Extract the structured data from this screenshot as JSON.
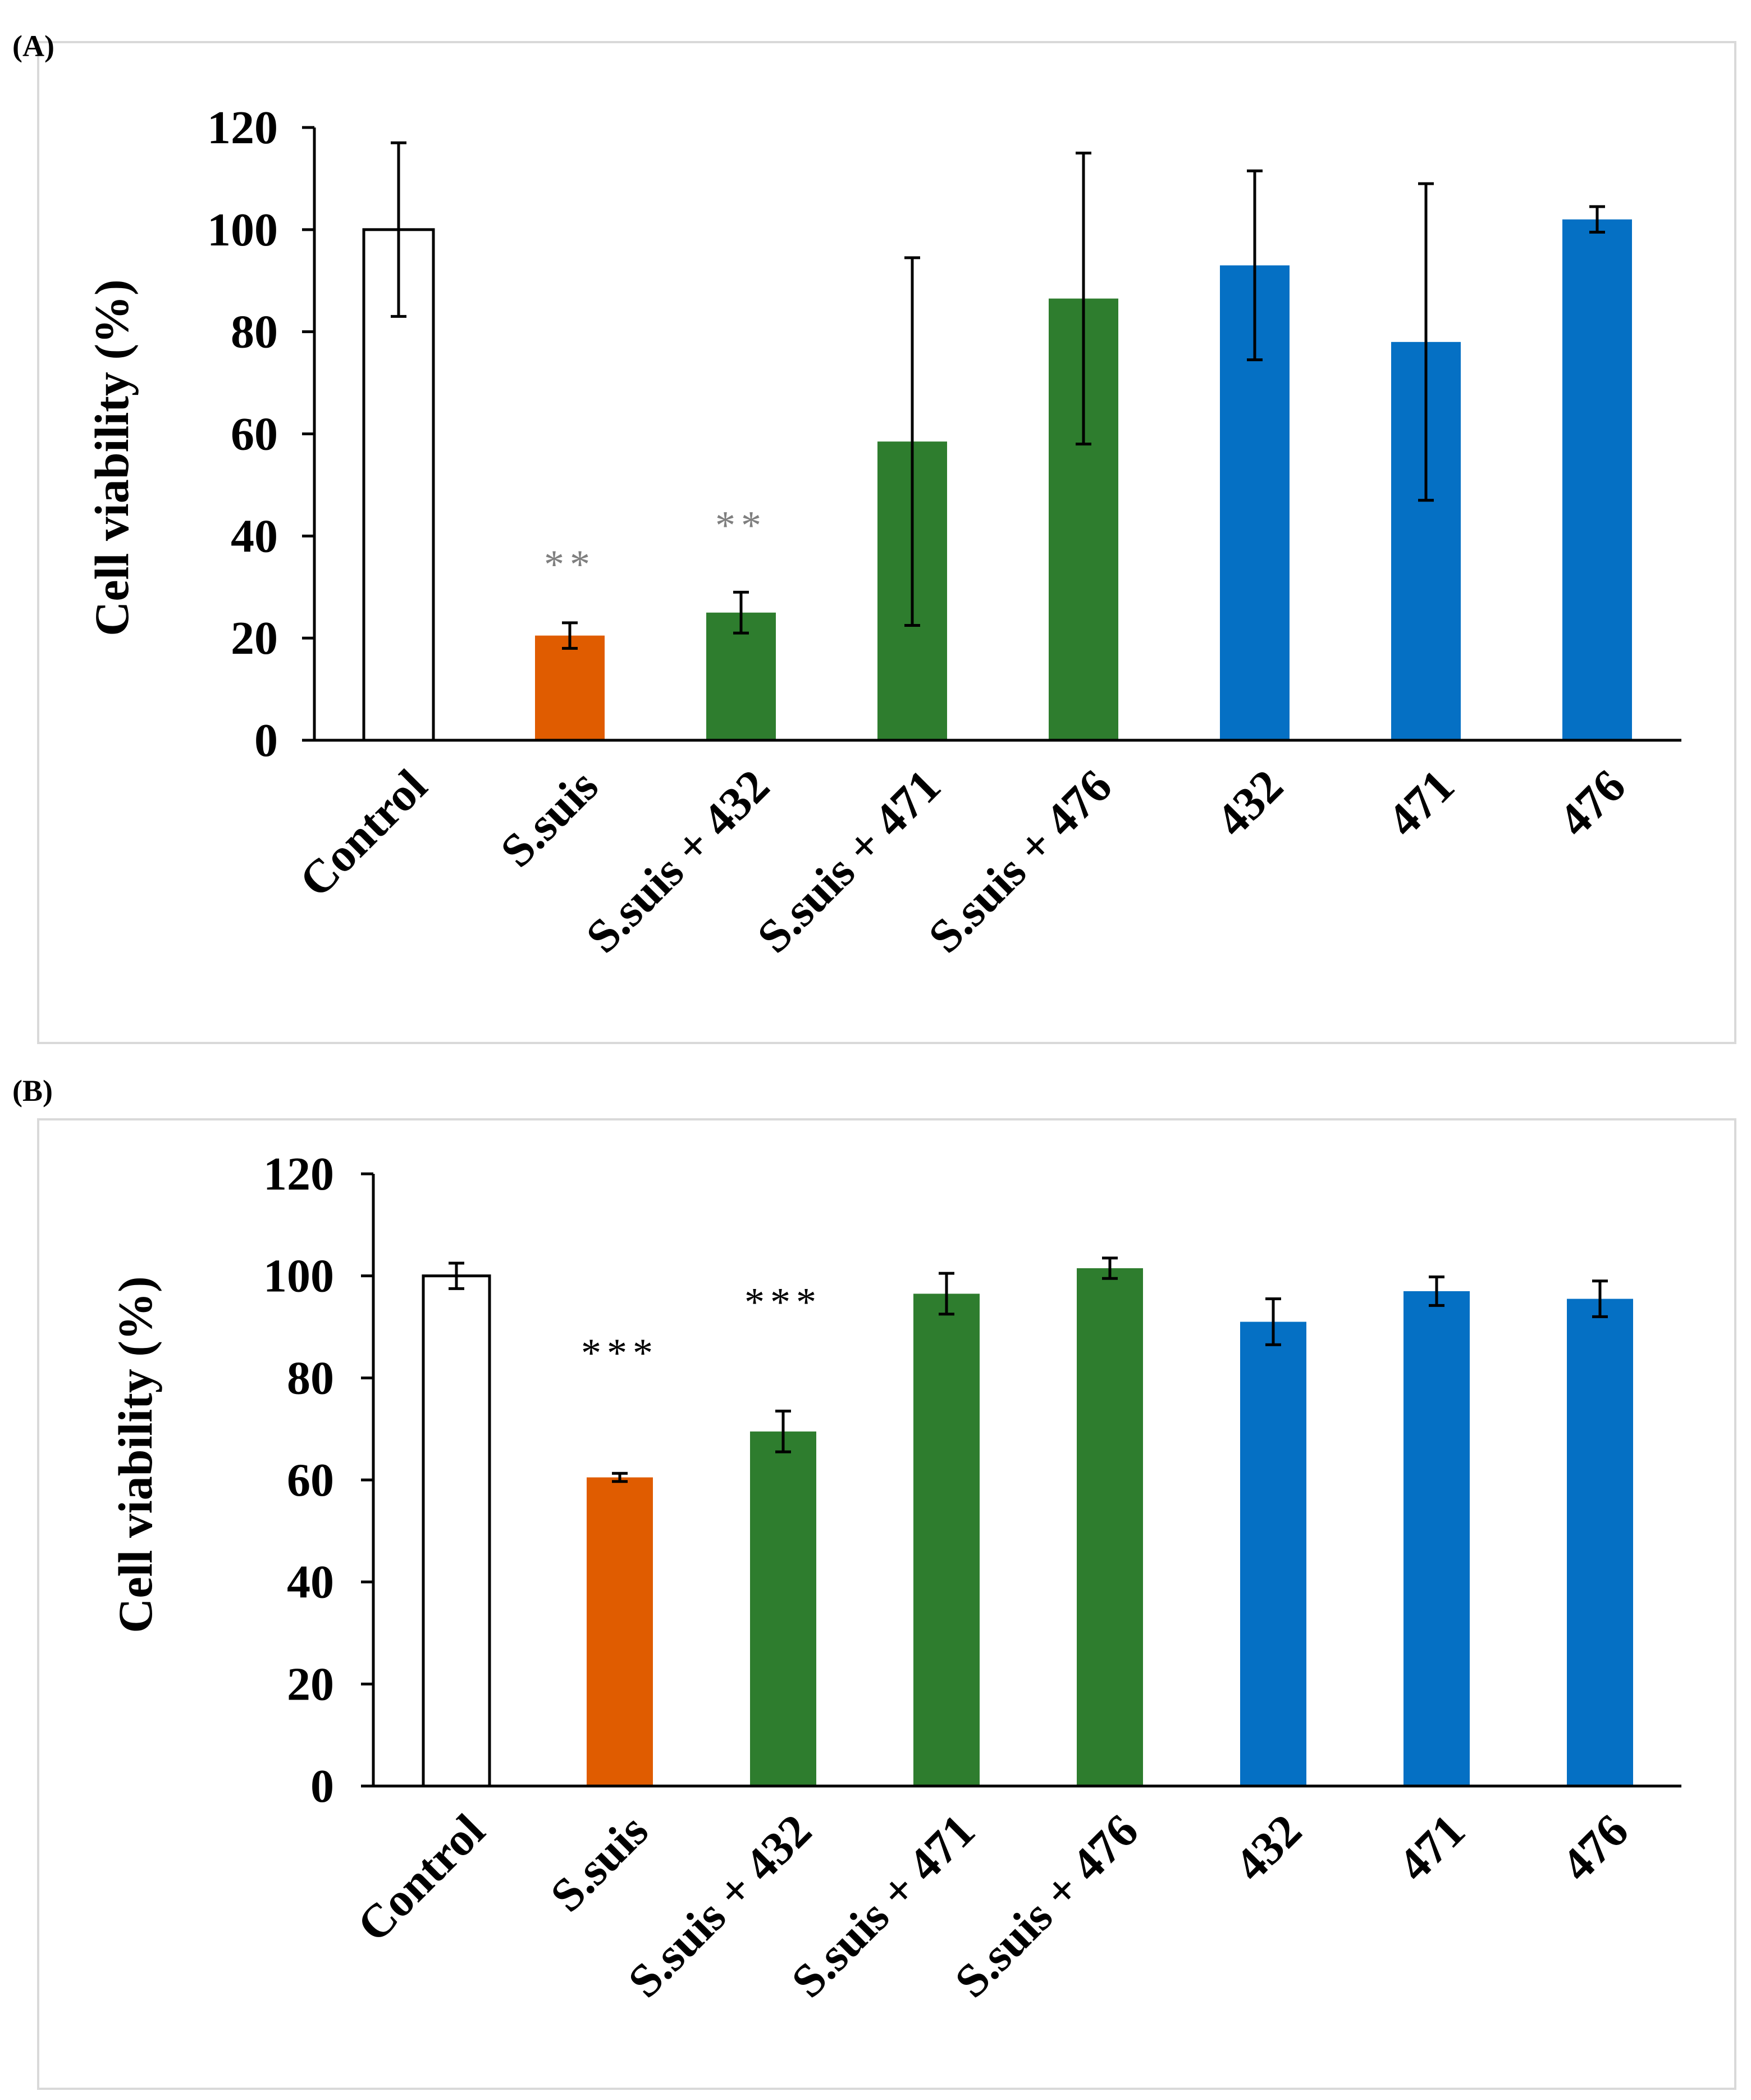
{
  "colors": {
    "control": "#ffffff",
    "infection": "#e05c00",
    "co_treatment": "#2e7d2e",
    "strain_only": "#0570c4",
    "axis": "#000000",
    "panel_border": "#d9d9d9",
    "sig_a": "#7f7f7f",
    "sig_b": "#000000"
  },
  "chart_data": [
    {
      "panel": "(A)",
      "type": "bar",
      "ylabel": "Cell viability (%)",
      "ylim": [
        0,
        120
      ],
      "yticks": [
        "0",
        "20",
        "40",
        "60",
        "80",
        "100",
        "120"
      ],
      "categories": [
        "Control",
        "S.suis",
        "S.suis + 432",
        "S.suis + 471",
        "S.suis + 476",
        "432",
        "471",
        "476"
      ],
      "values": [
        100,
        20.5,
        25,
        58.5,
        86.5,
        93,
        78,
        102
      ],
      "errors": [
        17,
        2.5,
        4,
        36,
        28.5,
        18.5,
        31,
        2.5
      ],
      "groups": [
        "control",
        "infection",
        "co_treatment",
        "co_treatment",
        "co_treatment",
        "strain_only",
        "strain_only",
        "strain_only"
      ],
      "significance": [
        "",
        "**",
        "**",
        "",
        "",
        "",
        "",
        ""
      ],
      "grid": false
    },
    {
      "panel": "(B)",
      "type": "bar",
      "ylabel": "Cell viability (%)",
      "ylim": [
        0,
        120
      ],
      "yticks": [
        "0",
        "20",
        "40",
        "60",
        "80",
        "100",
        "120"
      ],
      "categories": [
        "Control",
        "S.suis",
        "S.suis + 432",
        "S.suis + 471",
        "S.suis + 476",
        "432",
        "471",
        "476"
      ],
      "values": [
        100,
        60.5,
        69.5,
        96.5,
        101.5,
        91,
        97,
        95.5
      ],
      "errors": [
        2.5,
        0.8,
        4,
        4,
        2,
        4.5,
        2.8,
        3.5
      ],
      "groups": [
        "control",
        "infection",
        "co_treatment",
        "co_treatment",
        "co_treatment",
        "strain_only",
        "strain_only",
        "strain_only"
      ],
      "significance": [
        "",
        "***",
        "***",
        "",
        "",
        "",
        "",
        ""
      ],
      "grid": false
    }
  ]
}
